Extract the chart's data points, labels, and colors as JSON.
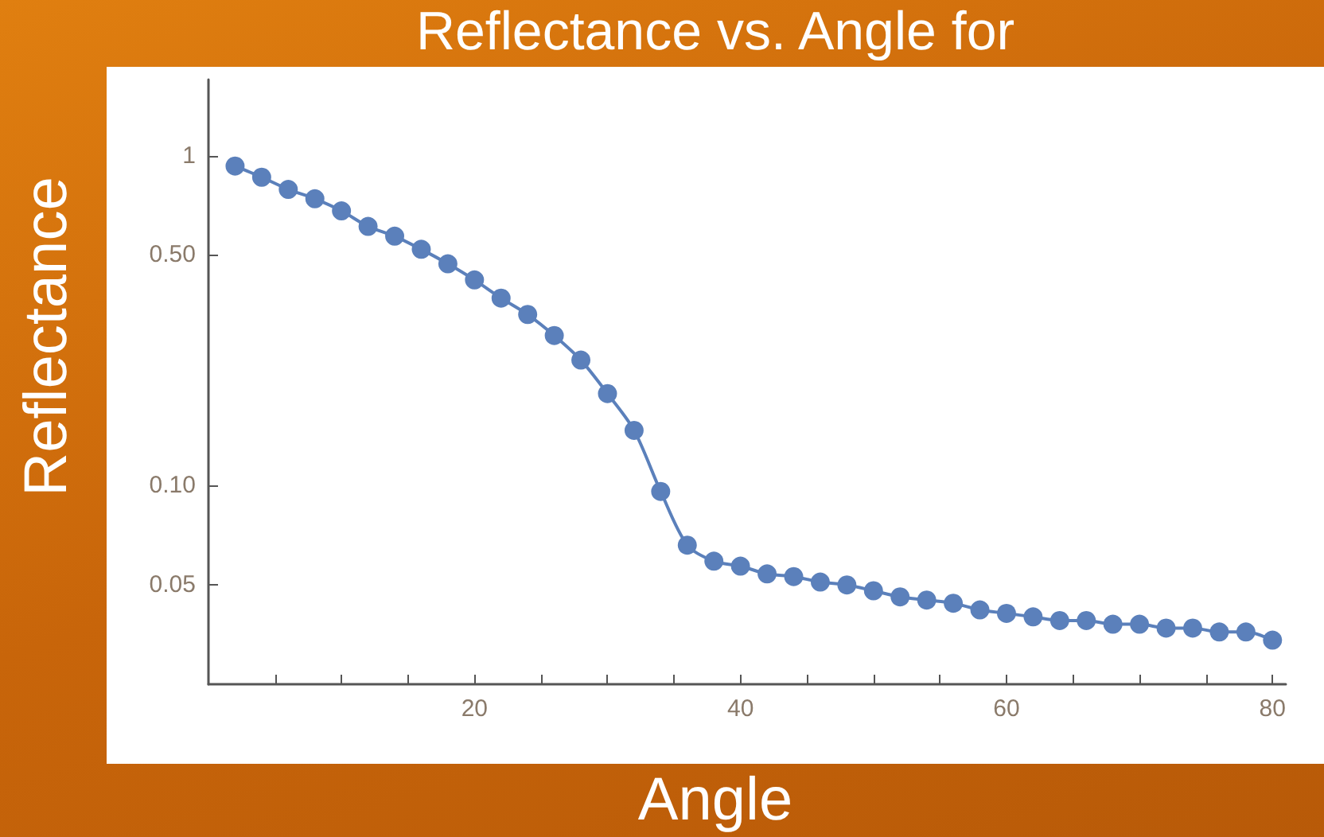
{
  "chart_data": {
    "type": "line",
    "title": "Reflectance vs. Angle for",
    "xlabel": "Angle",
    "ylabel": "Reflectance",
    "x": [
      2,
      4,
      6,
      8,
      10,
      12,
      14,
      16,
      18,
      20,
      22,
      24,
      26,
      28,
      30,
      32,
      34,
      36,
      38,
      40,
      42,
      44,
      46,
      48,
      50,
      52,
      54,
      56,
      58,
      60,
      62,
      64,
      66,
      68,
      70,
      72,
      74,
      76,
      78,
      80
    ],
    "series": [
      {
        "color": "#5b80bb",
        "values": [
          0.93,
          0.86,
          0.79,
          0.74,
          0.68,
          0.61,
          0.57,
          0.52,
          0.47,
          0.42,
          0.37,
          0.33,
          0.285,
          0.24,
          0.19,
          0.147,
          0.096,
          0.066,
          0.059,
          0.057,
          0.054,
          0.053,
          0.051,
          0.05,
          0.048,
          0.046,
          0.045,
          0.044,
          0.042,
          0.041,
          0.04,
          0.039,
          0.039,
          0.038,
          0.038,
          0.037,
          0.037,
          0.036,
          0.036,
          0.034
        ]
      }
    ],
    "log": "y",
    "xlim": [
      0,
      81
    ],
    "ylim": [
      0.025,
      1.7
    ],
    "xticks": [
      {
        "value": 5,
        "label": null
      },
      {
        "value": 10,
        "label": null
      },
      {
        "value": 15,
        "label": null
      },
      20,
      {
        "value": 25,
        "label": null
      },
      {
        "value": 30,
        "label": null
      },
      {
        "value": 35,
        "label": null
      },
      40,
      {
        "value": 45,
        "label": null
      },
      {
        "value": 50,
        "label": null
      },
      {
        "value": 55,
        "label": null
      },
      60,
      {
        "value": 65,
        "label": null
      },
      {
        "value": 70,
        "label": null
      },
      {
        "value": 75,
        "label": null
      },
      80
    ],
    "yticks": [
      {
        "value": 0.05,
        "label": "0.05"
      },
      {
        "value": 0.1,
        "label": "0.10"
      },
      {
        "value": 0.5,
        "label": "0.50"
      },
      1
    ],
    "grid": false,
    "marker": "circle",
    "line_style": "solid"
  }
}
